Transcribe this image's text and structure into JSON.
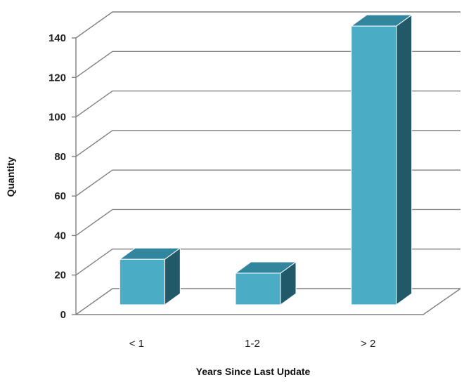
{
  "chart_data": {
    "type": "bar",
    "style": "3d-column",
    "categories": [
      "< 1",
      "1-2",
      "> 2"
    ],
    "values": [
      23,
      16,
      141
    ],
    "xlabel": "Years Since Last Update",
    "ylabel": "Quantity",
    "ylim": [
      0,
      140
    ],
    "yticks": [
      0,
      20,
      40,
      60,
      80,
      100,
      120,
      140
    ],
    "grid": true,
    "legend": "none",
    "colors": {
      "bar_front": "#4bacc6",
      "bar_top": "#31859c",
      "bar_side": "#215968",
      "bar_edge": "#ffffff",
      "grid": "#808080"
    }
  }
}
